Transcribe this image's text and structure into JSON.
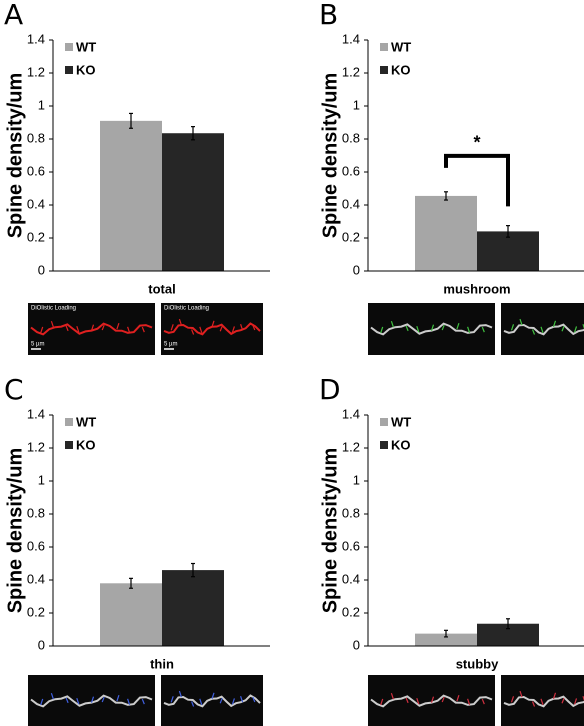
{
  "chart_data": [
    {
      "type": "bar",
      "panel": "A",
      "ylabel": "Spine density/um",
      "categories": [
        "total"
      ],
      "series": [
        {
          "name": "WT",
          "color": "#a6a6a6",
          "values": [
            0.91
          ],
          "errors": [
            0.045
          ]
        },
        {
          "name": "KO",
          "color": "#262626",
          "values": [
            0.835
          ],
          "errors": [
            0.04
          ]
        }
      ],
      "ylim": [
        0,
        1.4
      ],
      "yticks": [
        0,
        0.2,
        0.4,
        0.6,
        0.8,
        1,
        1.2,
        1.4
      ],
      "legend": "top-left",
      "image_labels": [
        "DiOlistic Loading",
        "5 µm"
      ]
    },
    {
      "type": "bar",
      "panel": "B",
      "ylabel": "Spine density/um",
      "categories": [
        "mushroom"
      ],
      "series": [
        {
          "name": "WT",
          "color": "#a6a6a6",
          "values": [
            0.455
          ],
          "errors": [
            0.025
          ]
        },
        {
          "name": "KO",
          "color": "#262626",
          "values": [
            0.24
          ],
          "errors": [
            0.035
          ]
        }
      ],
      "ylim": [
        0,
        1.4
      ],
      "yticks": [
        0,
        0.2,
        0.4,
        0.6,
        0.8,
        1,
        1.2,
        1.4
      ],
      "legend": "top-left",
      "annotation": "*"
    },
    {
      "type": "bar",
      "panel": "C",
      "ylabel": "Spine density/um",
      "categories": [
        "thin"
      ],
      "series": [
        {
          "name": "WT",
          "color": "#a6a6a6",
          "values": [
            0.38
          ],
          "errors": [
            0.03
          ]
        },
        {
          "name": "KO",
          "color": "#262626",
          "values": [
            0.46
          ],
          "errors": [
            0.04
          ]
        }
      ],
      "ylim": [
        0,
        1.4
      ],
      "yticks": [
        0,
        0.2,
        0.4,
        0.6,
        0.8,
        1,
        1.2,
        1.4
      ],
      "legend": "top-left"
    },
    {
      "type": "bar",
      "panel": "D",
      "ylabel": "Spine density/um",
      "categories": [
        "stubby"
      ],
      "series": [
        {
          "name": "WT",
          "color": "#a6a6a6",
          "values": [
            0.075
          ],
          "errors": [
            0.02
          ]
        },
        {
          "name": "KO",
          "color": "#262626",
          "values": [
            0.135
          ],
          "errors": [
            0.03
          ]
        }
      ],
      "ylim": [
        0,
        1.4
      ],
      "yticks": [
        0,
        0.2,
        0.4,
        0.6,
        0.8,
        1,
        1.2,
        1.4
      ],
      "legend": "top-left"
    }
  ]
}
